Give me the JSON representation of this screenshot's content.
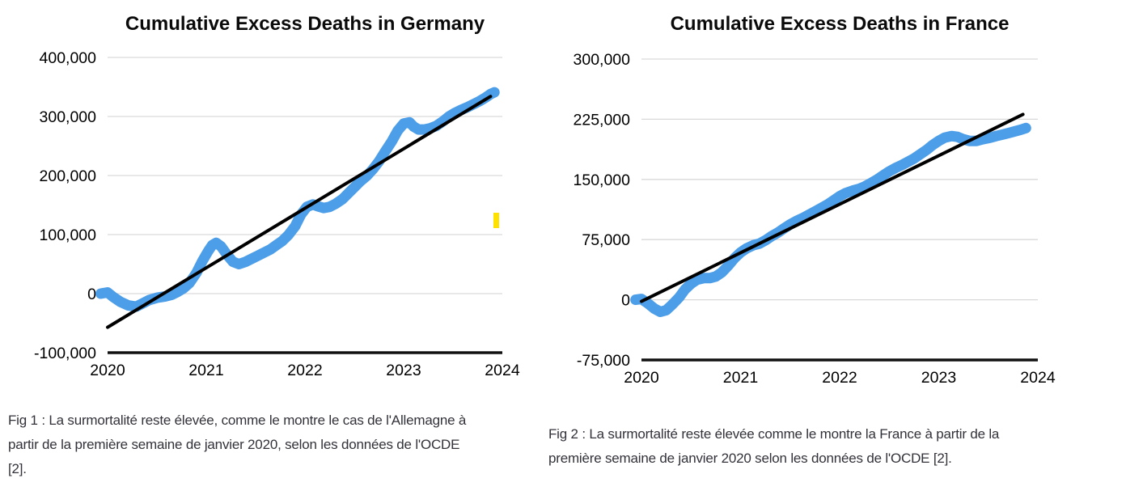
{
  "figures": [
    {
      "caption_lines": [
        "Fig 1 : La surmortalité reste élevée, comme le montre le cas de l'Allemagne à",
        "partir de la première semaine de janvier 2020, selon les données de l'OCDE",
        "[2]."
      ]
    },
    {
      "caption_lines": [
        "Fig 2 : La surmortalité reste élevée comme le montre la France à partir de la",
        "première semaine de janvier 2020 selon les données de l'OCDE [2]."
      ]
    }
  ],
  "annotations": {
    "highlight_marker_color": "#FFE100"
  },
  "colors": {
    "series_blue": "#4D9EE8",
    "trend_black": "#000000",
    "grid_gray": "#d9d9d9",
    "axis_black": "#111111",
    "tick_text": "#000000"
  },
  "chart_data": [
    {
      "type": "line",
      "title": "Cumulative Excess Deaths in Germany",
      "xlabel": "",
      "ylabel": "",
      "xlim": [
        2020,
        2024
      ],
      "ylim": [
        -100000,
        400000
      ],
      "grid": true,
      "legend": "none",
      "x_ticks": [
        2020,
        2021,
        2022,
        2023,
        2024
      ],
      "x_tick_labels": [
        "2020",
        "2021",
        "2022",
        "2023",
        "2024"
      ],
      "y_ticks": [
        -100000,
        0,
        100000,
        200000,
        300000,
        400000
      ],
      "y_tick_labels": [
        "-100,000",
        "0",
        "100,000",
        "200,000",
        "300,000",
        "400,000"
      ],
      "series": [
        {
          "name": "cumulative-excess-deaths",
          "color": "#4D9EE8",
          "width": 13,
          "points": [
            [
              2019.93,
              0
            ],
            [
              2020.0,
              2000
            ],
            [
              2020.06,
              -6000
            ],
            [
              2020.13,
              -14000
            ],
            [
              2020.21,
              -20000
            ],
            [
              2020.29,
              -22000
            ],
            [
              2020.35,
              -17000
            ],
            [
              2020.42,
              -11000
            ],
            [
              2020.5,
              -7000
            ],
            [
              2020.58,
              -5000
            ],
            [
              2020.65,
              -2000
            ],
            [
              2020.71,
              3000
            ],
            [
              2020.77,
              9000
            ],
            [
              2020.83,
              18000
            ],
            [
              2020.9,
              35000
            ],
            [
              2020.96,
              55000
            ],
            [
              2021.02,
              72000
            ],
            [
              2021.06,
              82000
            ],
            [
              2021.1,
              86000
            ],
            [
              2021.15,
              80000
            ],
            [
              2021.21,
              66000
            ],
            [
              2021.27,
              54000
            ],
            [
              2021.33,
              50000
            ],
            [
              2021.4,
              54000
            ],
            [
              2021.46,
              59000
            ],
            [
              2021.52,
              64000
            ],
            [
              2021.58,
              69000
            ],
            [
              2021.65,
              75000
            ],
            [
              2021.71,
              82000
            ],
            [
              2021.77,
              89000
            ],
            [
              2021.83,
              99000
            ],
            [
              2021.9,
              114000
            ],
            [
              2021.96,
              134000
            ],
            [
              2022.02,
              147000
            ],
            [
              2022.08,
              151000
            ],
            [
              2022.13,
              148000
            ],
            [
              2022.19,
              145000
            ],
            [
              2022.25,
              147000
            ],
            [
              2022.31,
              152000
            ],
            [
              2022.38,
              160000
            ],
            [
              2022.44,
              170000
            ],
            [
              2022.5,
              180000
            ],
            [
              2022.56,
              190000
            ],
            [
              2022.63,
              200000
            ],
            [
              2022.69,
              211000
            ],
            [
              2022.75,
              224000
            ],
            [
              2022.81,
              240000
            ],
            [
              2022.88,
              258000
            ],
            [
              2022.94,
              276000
            ],
            [
              2023.0,
              288000
            ],
            [
              2023.06,
              290000
            ],
            [
              2023.1,
              283000
            ],
            [
              2023.15,
              278000
            ],
            [
              2023.21,
              278000
            ],
            [
              2023.27,
              280000
            ],
            [
              2023.33,
              284000
            ],
            [
              2023.4,
              292000
            ],
            [
              2023.46,
              300000
            ],
            [
              2023.52,
              306000
            ],
            [
              2023.58,
              311000
            ],
            [
              2023.65,
              316000
            ],
            [
              2023.71,
              321000
            ],
            [
              2023.77,
              326000
            ],
            [
              2023.83,
              332000
            ],
            [
              2023.88,
              338000
            ],
            [
              2023.92,
              341000
            ]
          ]
        },
        {
          "name": "linear-trend",
          "color": "#000000",
          "width": 4,
          "points": [
            [
              2020.0,
              -57000
            ],
            [
              2023.88,
              334000
            ]
          ]
        }
      ]
    },
    {
      "type": "line",
      "title": "Cumulative Excess Deaths in France",
      "xlabel": "",
      "ylabel": "",
      "xlim": [
        2020,
        2024
      ],
      "ylim": [
        -75000,
        300000
      ],
      "grid": true,
      "legend": "none",
      "x_ticks": [
        2020,
        2021,
        2022,
        2023,
        2024
      ],
      "x_tick_labels": [
        "2020",
        "2021",
        "2022",
        "2023",
        "2024"
      ],
      "y_ticks": [
        -75000,
        0,
        75000,
        150000,
        225000,
        300000
      ],
      "y_tick_labels": [
        "-75,000",
        "0",
        "75,000",
        "150,000",
        "225,000",
        "300,000"
      ],
      "series": [
        {
          "name": "cumulative-excess-deaths",
          "color": "#4D9EE8",
          "width": 13,
          "points": [
            [
              2019.94,
              0
            ],
            [
              2020.0,
              1000
            ],
            [
              2020.06,
              -4000
            ],
            [
              2020.13,
              -11000
            ],
            [
              2020.19,
              -15000
            ],
            [
              2020.25,
              -13000
            ],
            [
              2020.31,
              -6000
            ],
            [
              2020.38,
              3000
            ],
            [
              2020.44,
              13000
            ],
            [
              2020.5,
              20000
            ],
            [
              2020.56,
              25000
            ],
            [
              2020.63,
              27000
            ],
            [
              2020.69,
              27000
            ],
            [
              2020.75,
              29000
            ],
            [
              2020.81,
              34000
            ],
            [
              2020.88,
              43000
            ],
            [
              2020.94,
              52000
            ],
            [
              2021.0,
              59000
            ],
            [
              2021.06,
              64000
            ],
            [
              2021.13,
              68000
            ],
            [
              2021.19,
              70000
            ],
            [
              2021.25,
              74000
            ],
            [
              2021.31,
              79000
            ],
            [
              2021.38,
              84000
            ],
            [
              2021.44,
              89000
            ],
            [
              2021.5,
              94000
            ],
            [
              2021.56,
              98000
            ],
            [
              2021.63,
              102000
            ],
            [
              2021.69,
              106000
            ],
            [
              2021.75,
              110000
            ],
            [
              2021.81,
              114000
            ],
            [
              2021.88,
              119000
            ],
            [
              2021.94,
              124000
            ],
            [
              2022.0,
              129000
            ],
            [
              2022.06,
              133000
            ],
            [
              2022.13,
              136000
            ],
            [
              2022.19,
              138000
            ],
            [
              2022.25,
              141000
            ],
            [
              2022.31,
              145000
            ],
            [
              2022.38,
              150000
            ],
            [
              2022.44,
              155000
            ],
            [
              2022.5,
              160000
            ],
            [
              2022.56,
              164000
            ],
            [
              2022.63,
              168000
            ],
            [
              2022.69,
              172000
            ],
            [
              2022.75,
              176000
            ],
            [
              2022.81,
              181000
            ],
            [
              2022.88,
              187000
            ],
            [
              2022.94,
              193000
            ],
            [
              2023.0,
              198000
            ],
            [
              2023.06,
              202000
            ],
            [
              2023.13,
              204000
            ],
            [
              2023.19,
              203000
            ],
            [
              2023.25,
              200000
            ],
            [
              2023.31,
              198000
            ],
            [
              2023.38,
              198000
            ],
            [
              2023.44,
              200000
            ],
            [
              2023.52,
              202000
            ],
            [
              2023.58,
              204000
            ],
            [
              2023.65,
              206000
            ],
            [
              2023.71,
              208000
            ],
            [
              2023.77,
              210000
            ],
            [
              2023.83,
              212000
            ],
            [
              2023.88,
              214000
            ]
          ]
        },
        {
          "name": "linear-trend",
          "color": "#000000",
          "width": 4,
          "points": [
            [
              2020.0,
              -2000
            ],
            [
              2023.85,
              231000
            ]
          ]
        }
      ]
    }
  ]
}
